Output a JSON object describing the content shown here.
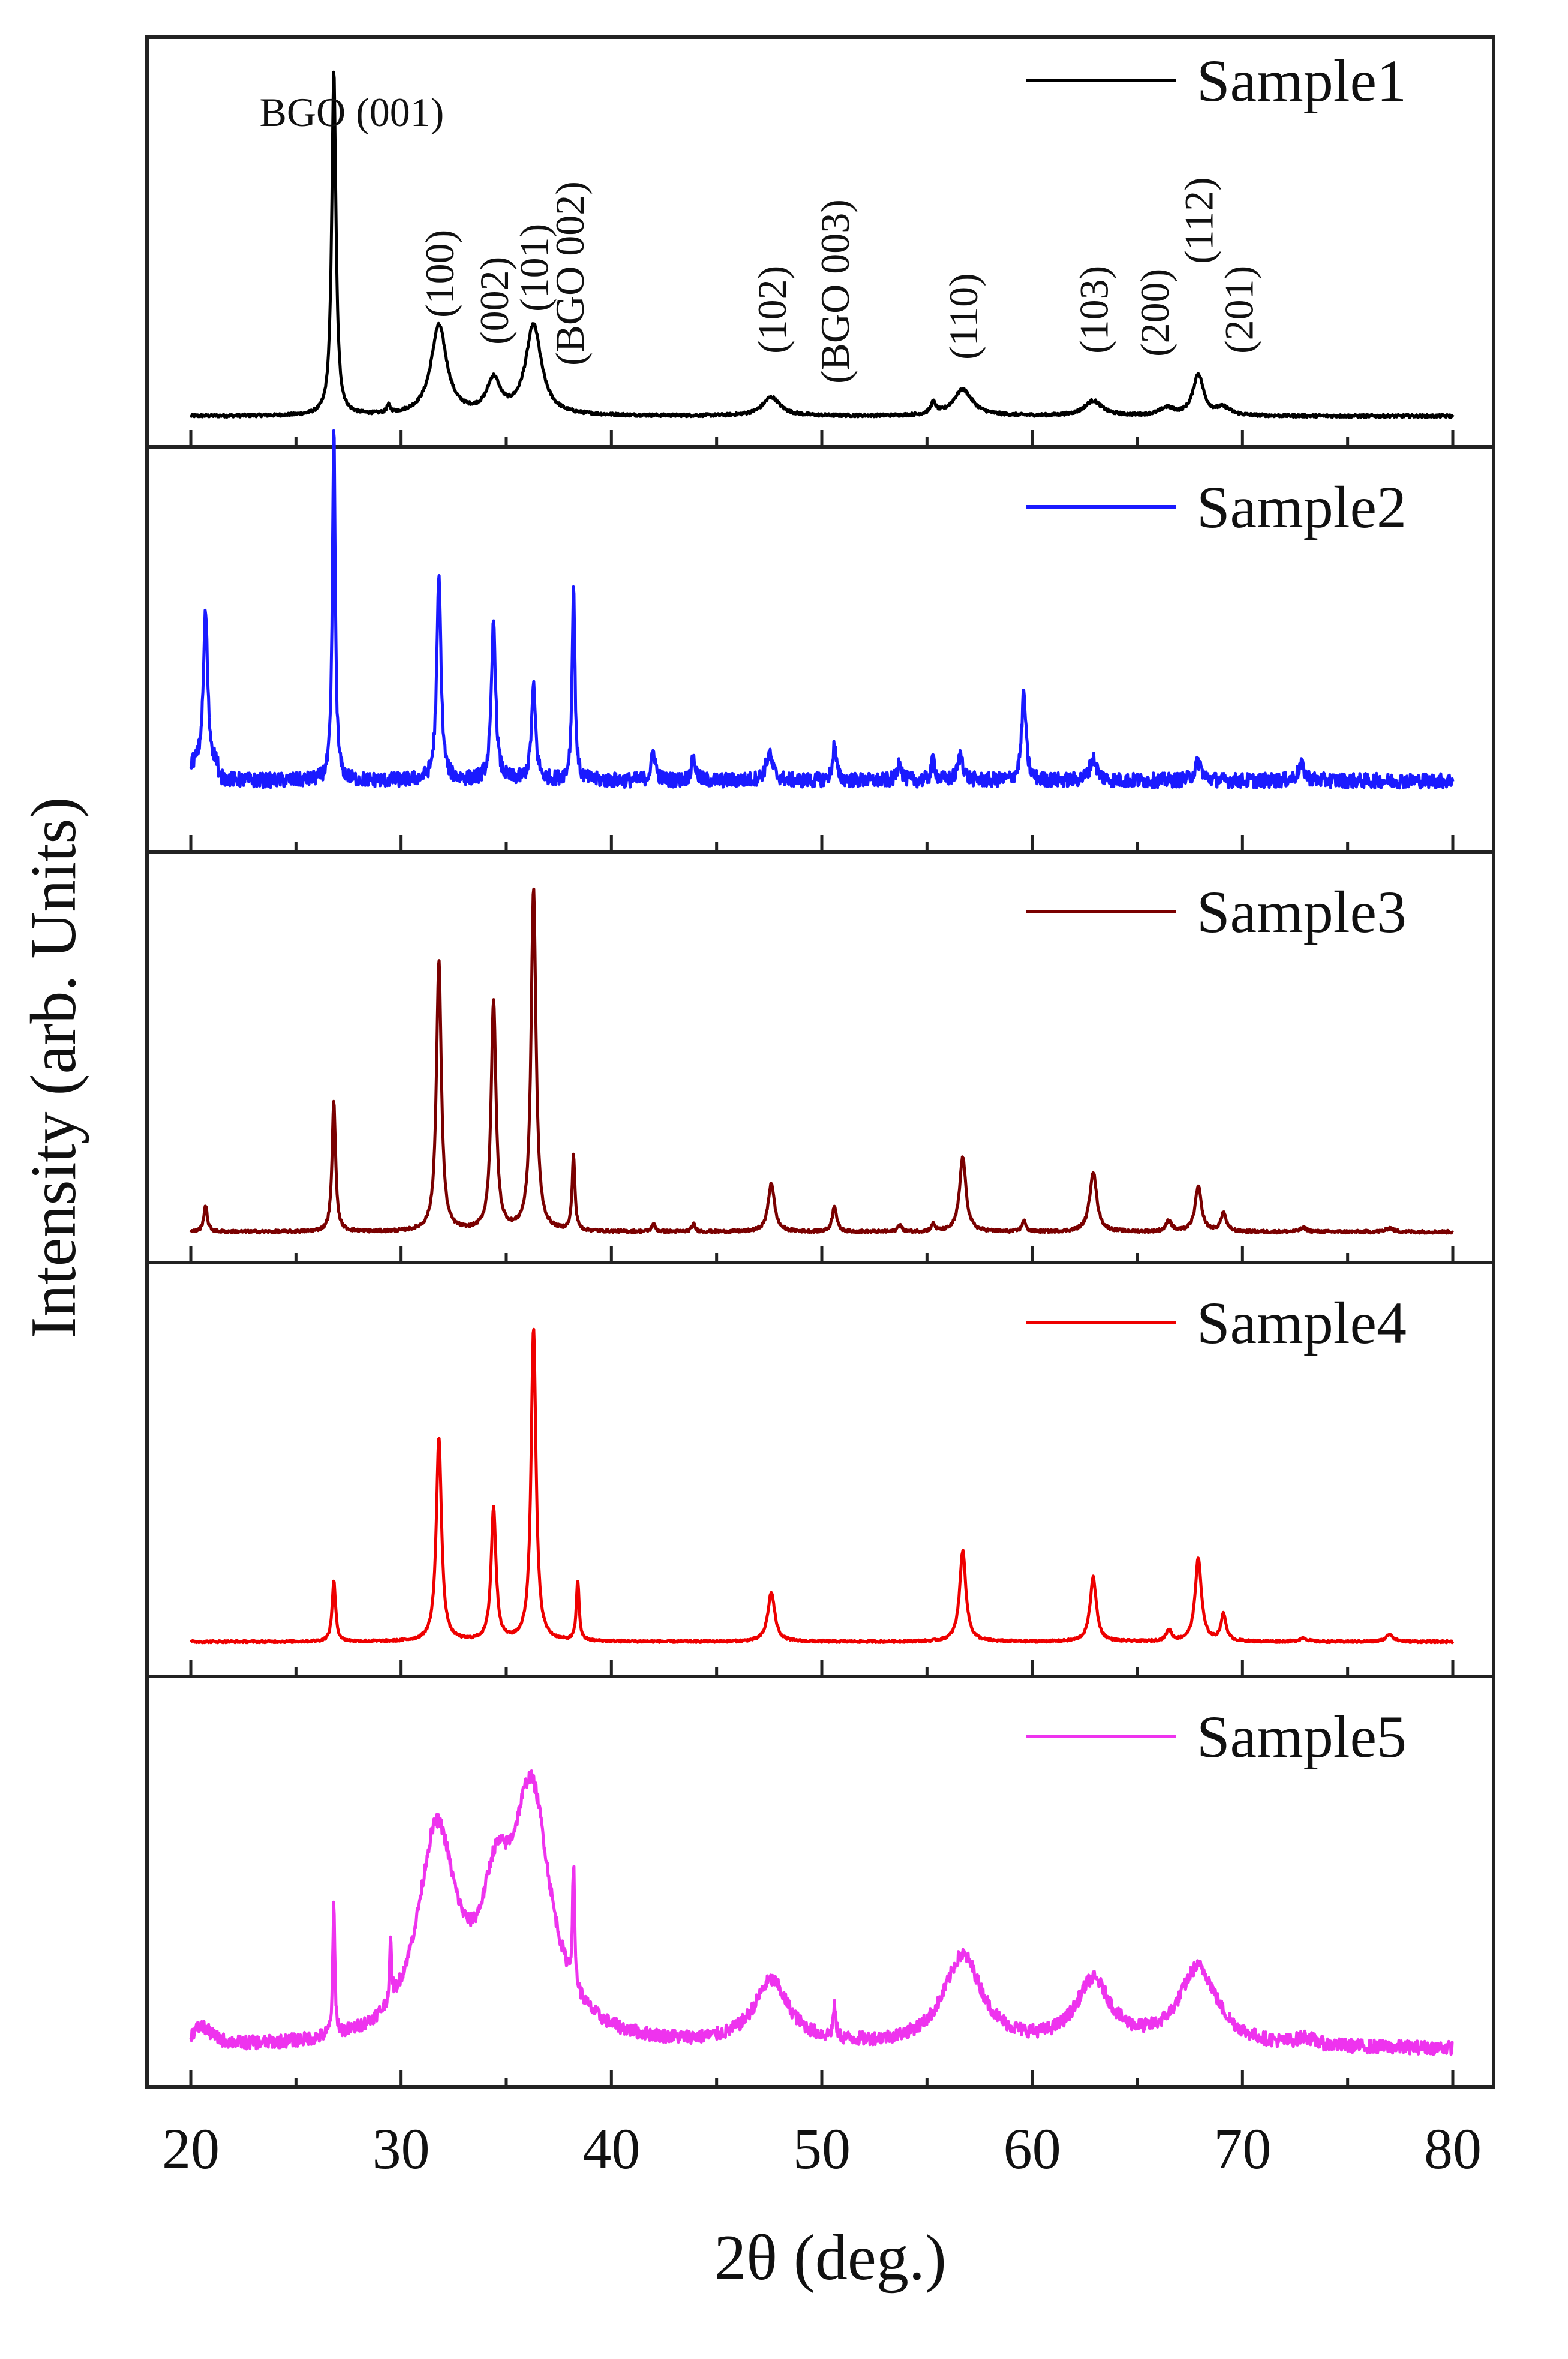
{
  "chart_data": {
    "type": "line",
    "title": "",
    "xlabel": "2θ (deg.)",
    "ylabel": "Intensity (arb. Units)",
    "xlim": [
      20,
      80
    ],
    "ylim": [
      0,
      1
    ],
    "x_ticks": [
      "20",
      "30",
      "40",
      "50",
      "60",
      "70",
      "80"
    ],
    "stacked_panels": true,
    "series": [
      {
        "name": "Sample1",
        "color": "#000000",
        "baseline": 0.05,
        "noise": 0.004,
        "peaks": [
          {
            "x": 26.8,
            "h": 0.92,
            "w": 0.12
          },
          {
            "x": 29.4,
            "h": 0.02,
            "w": 0.1
          },
          {
            "x": 31.8,
            "h": 0.24,
            "w": 0.45
          },
          {
            "x": 34.4,
            "h": 0.09,
            "w": 0.38
          },
          {
            "x": 36.3,
            "h": 0.24,
            "w": 0.45
          },
          {
            "x": 47.6,
            "h": 0.05,
            "w": 0.5
          },
          {
            "x": 55.3,
            "h": 0.03,
            "w": 0.15
          },
          {
            "x": 56.7,
            "h": 0.07,
            "w": 0.55
          },
          {
            "x": 62.9,
            "h": 0.04,
            "w": 0.5
          },
          {
            "x": 66.4,
            "h": 0.02,
            "w": 0.4
          },
          {
            "x": 67.9,
            "h": 0.11,
            "w": 0.3
          },
          {
            "x": 69.1,
            "h": 0.02,
            "w": 0.4
          }
        ]
      },
      {
        "name": "Sample2",
        "color": "#1a1aff",
        "baseline": 0.16,
        "noise": 0.02,
        "peaks": [
          {
            "x": 20.7,
            "h": 0.42,
            "w": 0.12
          },
          {
            "x": 26.8,
            "h": 0.96,
            "w": 0.08
          },
          {
            "x": 31.8,
            "h": 0.55,
            "w": 0.12
          },
          {
            "x": 34.4,
            "h": 0.43,
            "w": 0.12
          },
          {
            "x": 36.3,
            "h": 0.25,
            "w": 0.12
          },
          {
            "x": 38.2,
            "h": 0.53,
            "w": 0.08
          },
          {
            "x": 42.0,
            "h": 0.08,
            "w": 0.12
          },
          {
            "x": 43.9,
            "h": 0.06,
            "w": 0.12
          },
          {
            "x": 47.5,
            "h": 0.07,
            "w": 0.2
          },
          {
            "x": 50.6,
            "h": 0.1,
            "w": 0.1
          },
          {
            "x": 53.7,
            "h": 0.06,
            "w": 0.1
          },
          {
            "x": 55.3,
            "h": 0.06,
            "w": 0.1
          },
          {
            "x": 56.6,
            "h": 0.07,
            "w": 0.15
          },
          {
            "x": 59.6,
            "h": 0.24,
            "w": 0.12
          },
          {
            "x": 62.9,
            "h": 0.06,
            "w": 0.2
          },
          {
            "x": 67.9,
            "h": 0.05,
            "w": 0.2
          },
          {
            "x": 72.8,
            "h": 0.04,
            "w": 0.2
          }
        ]
      },
      {
        "name": "Sample3",
        "color": "#7a0000",
        "baseline": 0.05,
        "noise": 0.004,
        "peaks": [
          {
            "x": 20.7,
            "h": 0.07,
            "w": 0.1
          },
          {
            "x": 26.8,
            "h": 0.35,
            "w": 0.1
          },
          {
            "x": 31.8,
            "h": 0.72,
            "w": 0.14
          },
          {
            "x": 34.4,
            "h": 0.61,
            "w": 0.14
          },
          {
            "x": 36.3,
            "h": 0.91,
            "w": 0.14
          },
          {
            "x": 38.2,
            "h": 0.2,
            "w": 0.08
          },
          {
            "x": 42.0,
            "h": 0.02,
            "w": 0.1
          },
          {
            "x": 43.9,
            "h": 0.02,
            "w": 0.1
          },
          {
            "x": 47.6,
            "h": 0.13,
            "w": 0.18
          },
          {
            "x": 50.6,
            "h": 0.07,
            "w": 0.12
          },
          {
            "x": 53.7,
            "h": 0.02,
            "w": 0.1
          },
          {
            "x": 55.3,
            "h": 0.02,
            "w": 0.1
          },
          {
            "x": 56.7,
            "h": 0.2,
            "w": 0.18
          },
          {
            "x": 59.6,
            "h": 0.03,
            "w": 0.1
          },
          {
            "x": 62.9,
            "h": 0.16,
            "w": 0.2
          },
          {
            "x": 66.5,
            "h": 0.03,
            "w": 0.15
          },
          {
            "x": 67.9,
            "h": 0.12,
            "w": 0.18
          },
          {
            "x": 69.1,
            "h": 0.05,
            "w": 0.15
          },
          {
            "x": 72.9,
            "h": 0.01,
            "w": 0.2
          },
          {
            "x": 77.0,
            "h": 0.01,
            "w": 0.2
          }
        ]
      },
      {
        "name": "Sample4",
        "color": "#ee0000",
        "baseline": 0.06,
        "noise": 0.003,
        "peaks": [
          {
            "x": 26.8,
            "h": 0.16,
            "w": 0.1
          },
          {
            "x": 31.8,
            "h": 0.54,
            "w": 0.15
          },
          {
            "x": 34.4,
            "h": 0.35,
            "w": 0.14
          },
          {
            "x": 36.3,
            "h": 0.83,
            "w": 0.14
          },
          {
            "x": 38.4,
            "h": 0.16,
            "w": 0.08
          },
          {
            "x": 47.6,
            "h": 0.13,
            "w": 0.2
          },
          {
            "x": 56.7,
            "h": 0.24,
            "w": 0.18
          },
          {
            "x": 62.9,
            "h": 0.17,
            "w": 0.18
          },
          {
            "x": 66.5,
            "h": 0.03,
            "w": 0.15
          },
          {
            "x": 67.9,
            "h": 0.22,
            "w": 0.18
          },
          {
            "x": 69.1,
            "h": 0.07,
            "w": 0.15
          },
          {
            "x": 72.9,
            "h": 0.01,
            "w": 0.2
          },
          {
            "x": 77.0,
            "h": 0.02,
            "w": 0.2
          }
        ]
      },
      {
        "name": "Sample5",
        "color": "#ee33ee",
        "baseline": 0.07,
        "noise": 0.018,
        "peaks": [
          {
            "x": 20.5,
            "h": 0.05,
            "w": 0.6
          },
          {
            "x": 26.8,
            "h": 0.35,
            "w": 0.06
          },
          {
            "x": 29.5,
            "h": 0.15,
            "w": 0.06
          },
          {
            "x": 31.7,
            "h": 0.55,
            "w": 1.1
          },
          {
            "x": 34.5,
            "h": 0.28,
            "w": 0.8
          },
          {
            "x": 36.2,
            "h": 0.64,
            "w": 1.1
          },
          {
            "x": 38.2,
            "h": 0.32,
            "w": 0.06
          },
          {
            "x": 47.6,
            "h": 0.17,
            "w": 1.0
          },
          {
            "x": 50.6,
            "h": 0.08,
            "w": 0.08
          },
          {
            "x": 56.7,
            "h": 0.24,
            "w": 1.1
          },
          {
            "x": 62.9,
            "h": 0.17,
            "w": 1.0
          },
          {
            "x": 67.9,
            "h": 0.21,
            "w": 1.1
          },
          {
            "x": 73.0,
            "h": 0.02,
            "w": 0.5
          }
        ]
      }
    ],
    "annotations": [
      {
        "text": "BGO (001)",
        "x": 26.8,
        "rotated": false
      },
      {
        "text": "(100)",
        "x": 31.8,
        "rotated": true
      },
      {
        "text": "(002)",
        "x": 34.4,
        "rotated": true
      },
      {
        "text": "(101)",
        "x": 36.3,
        "rotated": true
      },
      {
        "text": "(BGO 002)",
        "x": 38.0,
        "rotated": true
      },
      {
        "text": "(102)",
        "x": 47.6,
        "rotated": true
      },
      {
        "text": "(BGO 003)",
        "x": 50.6,
        "rotated": true
      },
      {
        "text": "(110)",
        "x": 56.7,
        "rotated": true
      },
      {
        "text": "(103)",
        "x": 62.9,
        "rotated": true
      },
      {
        "text": "(200)",
        "x": 65.8,
        "rotated": true
      },
      {
        "text": "(112)",
        "x": 67.9,
        "rotated": true
      },
      {
        "text": "(201)",
        "x": 69.8,
        "rotated": true
      }
    ]
  }
}
